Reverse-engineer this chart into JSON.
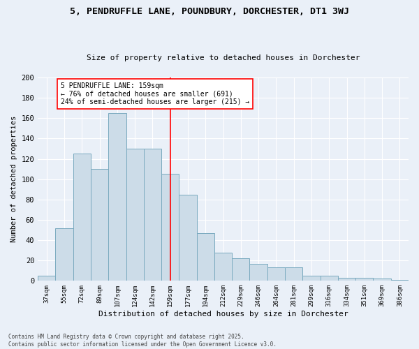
{
  "title_line1": "5, PENDRUFFLE LANE, POUNDBURY, DORCHESTER, DT1 3WJ",
  "title_line2": "Size of property relative to detached houses in Dorchester",
  "xlabel": "Distribution of detached houses by size in Dorchester",
  "ylabel": "Number of detached properties",
  "footer_line1": "Contains HM Land Registry data © Crown copyright and database right 2025.",
  "footer_line2": "Contains public sector information licensed under the Open Government Licence v3.0.",
  "categories": [
    "37sqm",
    "55sqm",
    "72sqm",
    "89sqm",
    "107sqm",
    "124sqm",
    "142sqm",
    "159sqm",
    "177sqm",
    "194sqm",
    "212sqm",
    "229sqm",
    "246sqm",
    "264sqm",
    "281sqm",
    "299sqm",
    "316sqm",
    "334sqm",
    "351sqm",
    "369sqm",
    "386sqm"
  ],
  "values": [
    5,
    52,
    125,
    110,
    165,
    130,
    130,
    105,
    85,
    47,
    28,
    22,
    17,
    13,
    13,
    5,
    5,
    3,
    3,
    2,
    1
  ],
  "bar_color": "#ccdce8",
  "bar_edge_color": "#7aaabf",
  "vline_x_idx": 7,
  "vline_color": "red",
  "annotation_text": "5 PENDRUFFLE LANE: 159sqm\n← 76% of detached houses are smaller (691)\n24% of semi-detached houses are larger (215) →",
  "annotation_box_color": "white",
  "annotation_box_edge": "red",
  "background_color": "#eaf0f8",
  "plot_background_color": "#eaf0f8",
  "grid_color": "white",
  "ylim": [
    0,
    200
  ],
  "yticks": [
    0,
    20,
    40,
    60,
    80,
    100,
    120,
    140,
    160,
    180,
    200
  ]
}
